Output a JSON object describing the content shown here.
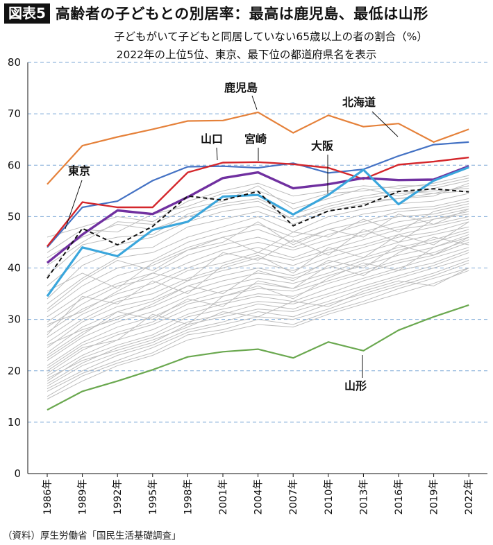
{
  "header": {
    "badge": "図表5",
    "title": "高齢者の子どもとの別居率：最高は鹿児島、最低は山形"
  },
  "chart_data": {
    "type": "line",
    "title": "高齢者の子どもとの別居率：最高は鹿児島、最低は山形",
    "subtitle_1": "子どもがいて子どもと同居していない65歳以上の者の割合（%）",
    "subtitle_2": "2022年の上位5位、東京、最下位の都道府県名を表示",
    "xlabel": "",
    "ylabel": "",
    "ylim": [
      0,
      80
    ],
    "y_ticks": [
      "0",
      "10",
      "20",
      "30",
      "40",
      "50",
      "60",
      "70",
      "80"
    ],
    "grid": "horizontal dashed at 10-step",
    "legend": "none (direct labels)",
    "x": [
      "1986年",
      "1989年",
      "1992年",
      "1995年",
      "1998年",
      "2001年",
      "2004年",
      "2007年",
      "2010年",
      "2013年",
      "2016年",
      "2019年",
      "2022年"
    ],
    "series": [
      {
        "name": "鹿児島",
        "color": "#e5813a",
        "width": 2.2,
        "dash": "",
        "values": [
          56.3,
          63.8,
          65.5,
          67.0,
          68.6,
          68.7,
          70.3,
          66.3,
          69.7,
          67.5,
          68.1,
          64.5,
          67.0
        ]
      },
      {
        "name": "北海道",
        "color": "#4472c4",
        "width": 2.2,
        "dash": "",
        "values": [
          44.0,
          51.8,
          53.0,
          57.0,
          59.7,
          59.8,
          59.5,
          60.4,
          58.5,
          59.2,
          61.8,
          64.0,
          64.5
        ]
      },
      {
        "name": "宮崎",
        "color": "#d4262b",
        "width": 2.4,
        "dash": "",
        "values": [
          44.2,
          52.8,
          51.8,
          51.8,
          58.6,
          60.5,
          60.6,
          60.2,
          59.5,
          57.3,
          60.1,
          60.7,
          61.5
        ]
      },
      {
        "name": "山口",
        "color": "#7030a0",
        "width": 3.4,
        "dash": "",
        "values": [
          41.0,
          46.5,
          51.2,
          50.5,
          53.8,
          57.5,
          58.6,
          55.5,
          56.3,
          57.5,
          57.1,
          57.2,
          59.8
        ]
      },
      {
        "name": "大阪",
        "color": "#3aa6dc",
        "width": 3.2,
        "dash": "",
        "values": [
          34.5,
          44.0,
          42.3,
          47.4,
          49.0,
          53.9,
          54.2,
          50.4,
          54.2,
          59.1,
          52.4,
          57.0,
          59.6
        ]
      },
      {
        "name": "東京",
        "color": "#111111",
        "width": 2.0,
        "dash": "6,4",
        "values": [
          38.0,
          47.7,
          44.5,
          48.1,
          54.0,
          53.2,
          54.9,
          48.2,
          51.1,
          52.1,
          54.9,
          55.4,
          54.8
        ]
      },
      {
        "name": "山形",
        "color": "#6aa84f",
        "width": 2.2,
        "dash": "",
        "values": [
          12.4,
          16.0,
          18.0,
          20.2,
          22.7,
          23.7,
          24.2,
          22.5,
          25.6,
          23.9,
          27.9,
          30.5,
          32.8
        ]
      }
    ],
    "annotations": [
      {
        "text": "鹿児島",
        "series": "鹿児島"
      },
      {
        "text": "北海道",
        "series": "北海道"
      },
      {
        "text": "宮崎",
        "series": "宮崎"
      },
      {
        "text": "山口",
        "series": "山口"
      },
      {
        "text": "大阪",
        "series": "大阪"
      },
      {
        "text": "東京",
        "series": "東京"
      },
      {
        "text": "山形",
        "series": "山形"
      }
    ],
    "background_series_color": "#bdbdbd",
    "background_series": [
      [
        46.0,
        48.0,
        50.0,
        49.0,
        53.0,
        55.0,
        56.5,
        54.0,
        55.0,
        56.0,
        55.5,
        56.5,
        58.0
      ],
      [
        43.0,
        47.5,
        47.0,
        50.5,
        52.0,
        54.5,
        55.0,
        52.5,
        54.5,
        55.0,
        56.0,
        56.0,
        57.5
      ],
      [
        40.5,
        45.0,
        49.0,
        48.5,
        51.5,
        53.0,
        56.0,
        51.5,
        53.5,
        55.5,
        54.0,
        55.5,
        57.0
      ],
      [
        38.5,
        44.5,
        46.0,
        46.5,
        50.5,
        52.5,
        53.5,
        50.5,
        52.5,
        54.0,
        55.0,
        54.5,
        56.0
      ],
      [
        36.5,
        42.0,
        44.5,
        46.0,
        49.0,
        51.0,
        52.0,
        49.5,
        52.0,
        53.5,
        54.5,
        55.0,
        55.5
      ],
      [
        34.0,
        40.5,
        43.5,
        44.0,
        48.0,
        49.5,
        51.0,
        48.5,
        51.0,
        52.5,
        53.5,
        54.5,
        55.0
      ],
      [
        33.0,
        38.0,
        42.0,
        43.0,
        46.0,
        48.0,
        50.0,
        47.0,
        50.0,
        51.5,
        52.5,
        53.0,
        54.5
      ],
      [
        31.5,
        36.5,
        40.0,
        41.5,
        45.0,
        47.0,
        48.5,
        46.0,
        48.5,
        50.5,
        51.5,
        52.0,
        53.5
      ],
      [
        30.5,
        35.0,
        38.5,
        40.5,
        43.5,
        46.0,
        47.5,
        45.0,
        47.5,
        49.0,
        51.0,
        51.5,
        53.0
      ],
      [
        29.5,
        34.0,
        37.0,
        39.0,
        42.5,
        44.5,
        46.0,
        44.0,
        46.5,
        48.5,
        50.0,
        50.5,
        52.0
      ],
      [
        28.5,
        33.0,
        36.5,
        38.0,
        41.0,
        43.5,
        45.0,
        43.5,
        45.5,
        47.0,
        49.0,
        50.0,
        51.5
      ],
      [
        27.5,
        32.0,
        35.0,
        37.0,
        40.0,
        42.5,
        44.0,
        42.0,
        44.5,
        46.5,
        48.0,
        49.5,
        51.0
      ],
      [
        26.5,
        31.0,
        34.0,
        36.0,
        39.5,
        41.0,
        43.0,
        41.5,
        43.5,
        45.5,
        47.5,
        48.5,
        50.0
      ],
      [
        25.5,
        30.0,
        33.5,
        35.0,
        38.0,
        40.0,
        42.0,
        40.5,
        43.0,
        44.5,
        46.5,
        48.0,
        49.5
      ],
      [
        24.5,
        29.5,
        32.5,
        34.0,
        37.5,
        39.5,
        41.0,
        39.5,
        42.0,
        44.0,
        46.0,
        47.0,
        49.0
      ],
      [
        23.5,
        28.5,
        31.5,
        33.5,
        36.5,
        38.5,
        40.0,
        38.5,
        41.0,
        43.0,
        45.0,
        46.5,
        48.0
      ],
      [
        23.0,
        27.5,
        30.5,
        32.5,
        35.5,
        37.5,
        39.0,
        38.0,
        40.0,
        42.0,
        44.0,
        45.5,
        47.5
      ],
      [
        22.0,
        26.5,
        29.5,
        31.5,
        34.5,
        36.5,
        38.0,
        37.0,
        39.0,
        41.5,
        43.5,
        45.0,
        47.0
      ],
      [
        21.0,
        25.5,
        28.5,
        30.5,
        33.5,
        35.5,
        37.0,
        36.0,
        38.5,
        40.5,
        42.5,
        44.0,
        46.0
      ],
      [
        20.5,
        25.0,
        27.5,
        29.5,
        33.0,
        34.5,
        36.0,
        35.5,
        37.5,
        39.5,
        41.5,
        43.0,
        45.5
      ],
      [
        19.5,
        24.0,
        27.0,
        29.0,
        32.0,
        33.5,
        35.0,
        34.5,
        37.0,
        39.0,
        41.0,
        42.5,
        45.0
      ],
      [
        19.0,
        23.0,
        26.0,
        28.0,
        31.0,
        33.0,
        34.5,
        33.5,
        36.0,
        38.0,
        40.0,
        42.0,
        44.0
      ],
      [
        18.0,
        22.5,
        25.0,
        27.0,
        30.5,
        32.0,
        33.5,
        33.0,
        35.0,
        37.5,
        39.5,
        41.0,
        43.5
      ],
      [
        17.5,
        21.5,
        24.5,
        26.5,
        29.5,
        31.0,
        33.0,
        32.0,
        34.5,
        36.5,
        38.5,
        40.5,
        43.0
      ],
      [
        17.0,
        21.0,
        23.5,
        25.5,
        29.0,
        30.5,
        32.0,
        31.5,
        33.5,
        36.0,
        38.0,
        40.0,
        42.0
      ],
      [
        16.5,
        20.0,
        23.0,
        25.0,
        28.0,
        29.5,
        31.5,
        30.5,
        33.0,
        35.0,
        37.0,
        39.0,
        41.5
      ],
      [
        16.0,
        19.5,
        22.0,
        24.5,
        27.5,
        29.0,
        30.5,
        30.0,
        32.0,
        34.5,
        36.5,
        38.5,
        41.0
      ],
      [
        15.0,
        19.0,
        21.5,
        23.5,
        27.0,
        28.0,
        30.0,
        29.0,
        31.5,
        33.5,
        36.0,
        38.0,
        40.0
      ],
      [
        14.5,
        18.0,
        21.0,
        23.0,
        26.0,
        27.5,
        29.0,
        28.5,
        31.0,
        33.0,
        35.0,
        37.0,
        39.5
      ],
      [
        35.5,
        39.0,
        36.0,
        41.0,
        44.0,
        46.0,
        43.0,
        47.0,
        46.0,
        49.5,
        47.0,
        51.0,
        52.5
      ],
      [
        27.0,
        34.5,
        33.0,
        37.5,
        35.0,
        40.5,
        42.5,
        39.0,
        44.0,
        42.0,
        46.5,
        44.5,
        49.0
      ],
      [
        22.5,
        27.0,
        31.5,
        30.0,
        34.0,
        32.5,
        37.5,
        36.0,
        40.5,
        38.5,
        43.0,
        46.0,
        44.5
      ],
      [
        20.0,
        24.5,
        26.0,
        31.0,
        29.0,
        34.5,
        36.5,
        34.0,
        38.0,
        41.0,
        39.5,
        44.0,
        46.5
      ],
      [
        32.0,
        37.5,
        41.5,
        39.5,
        43.5,
        45.0,
        49.0,
        44.5,
        47.5,
        46.0,
        50.5,
        48.5,
        51.5
      ],
      [
        29.0,
        31.5,
        35.5,
        39.0,
        37.5,
        43.0,
        41.5,
        45.5,
        42.5,
        47.5,
        45.0,
        49.5,
        50.5
      ],
      [
        25.0,
        28.0,
        30.0,
        33.0,
        36.5,
        35.0,
        39.5,
        37.5,
        41.5,
        40.0,
        44.5,
        42.5,
        46.0
      ],
      [
        42.0,
        46.0,
        48.5,
        47.5,
        50.0,
        52.0,
        53.0,
        49.5,
        51.5,
        53.0,
        53.5,
        54.0,
        56.5
      ],
      [
        18.5,
        22.0,
        24.0,
        26.0,
        28.5,
        31.5,
        30.5,
        33.5,
        32.5,
        35.5,
        37.5,
        36.5,
        40.0
      ]
    ]
  },
  "source": "（資料）厚生労働省「国民生活基礎調査」"
}
